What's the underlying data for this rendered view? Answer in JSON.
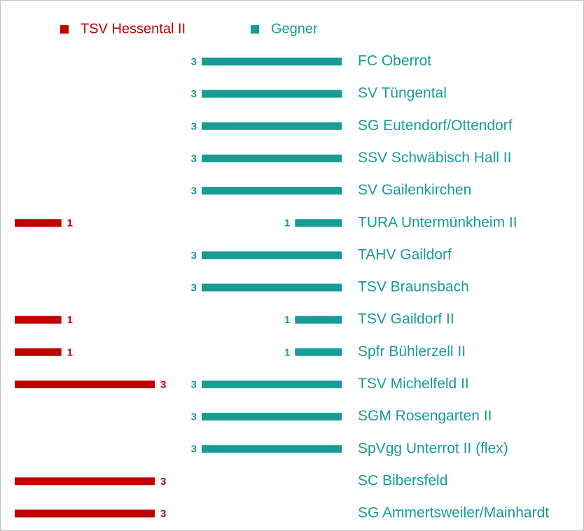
{
  "chart_data": {
    "type": "bar",
    "orientation": "horizontal",
    "categories": [
      "FC Oberrot",
      "SV Tüngental",
      "SG Eutendorf/Ottendorf",
      "SSV Schwäbisch Hall II",
      "SV Gailenkirchen",
      "TURA Untermünkheim II",
      "TAHV Gaildorf",
      "TSV Braunsbach",
      "TSV Gaildorf II",
      "Spfr Bühlerzell II",
      "TSV Michelfeld II",
      "SGM Rosengarten II",
      "SpVgg Unterrot II (flex)",
      "SC Bibersfeld",
      "SG Ammertsweiler/Mainhardt"
    ],
    "series": [
      {
        "name": "TSV Hessental II",
        "color": "#c00000",
        "values": [
          0,
          0,
          0,
          0,
          0,
          1,
          0,
          0,
          1,
          1,
          3,
          0,
          0,
          3,
          3
        ]
      },
      {
        "name": "Gegner",
        "color": "#179c96",
        "values": [
          3,
          3,
          3,
          3,
          3,
          1,
          3,
          3,
          1,
          1,
          3,
          3,
          3,
          0,
          0
        ]
      }
    ],
    "xlim": [
      0,
      3
    ]
  }
}
